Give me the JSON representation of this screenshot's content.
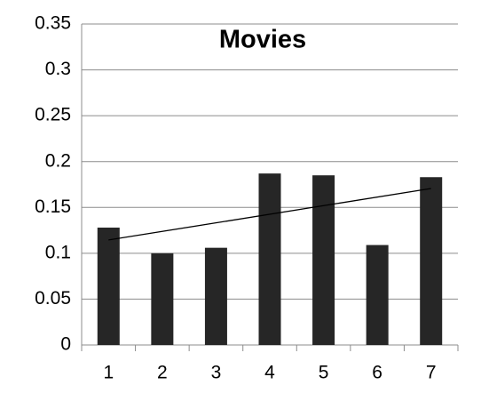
{
  "chart_data": {
    "type": "bar",
    "title": "Movies",
    "categories": [
      "1",
      "2",
      "3",
      "4",
      "5",
      "6",
      "7"
    ],
    "values": [
      0.128,
      0.1,
      0.106,
      0.187,
      0.185,
      0.109,
      0.183
    ],
    "color": "#262626",
    "ylim": [
      0,
      0.35
    ],
    "yticks": [
      0,
      0.05,
      0.1,
      0.15,
      0.2,
      0.25,
      0.3,
      0.35
    ],
    "grid": true,
    "trendline": "linear"
  }
}
